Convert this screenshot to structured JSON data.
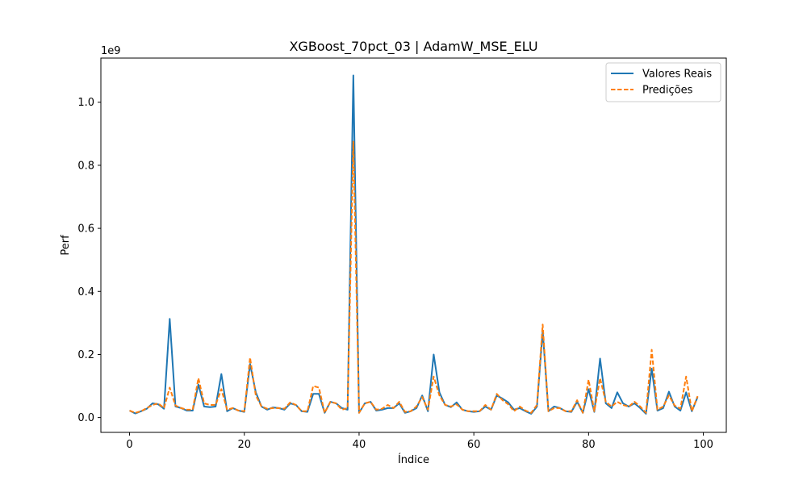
{
  "chart_data": {
    "type": "line",
    "title": "XGBoost_70pct_03 | AdamW_MSE_ELU",
    "xlabel": "Índice",
    "ylabel": "Perf",
    "y_offset_label": "1e9",
    "xlim": [
      -5,
      104
    ],
    "ylim": [
      -0.047,
      1.14
    ],
    "x_ticks": [
      0,
      20,
      40,
      60,
      80,
      100
    ],
    "y_ticks": [
      0.0,
      0.2,
      0.4,
      0.6,
      0.8,
      1.0
    ],
    "x_tick_labels": [
      "0",
      "20",
      "40",
      "60",
      "80",
      "100"
    ],
    "y_tick_labels": [
      "0.0",
      "0.2",
      "0.4",
      "0.6",
      "0.8",
      "1.0"
    ],
    "grid": false,
    "legend_position": "upper right",
    "legend": [
      "Valores Reais",
      "Predições"
    ],
    "x": [
      0,
      1,
      2,
      3,
      4,
      5,
      6,
      7,
      8,
      9,
      10,
      11,
      12,
      13,
      14,
      15,
      16,
      17,
      18,
      19,
      20,
      21,
      22,
      23,
      24,
      25,
      26,
      27,
      28,
      29,
      30,
      31,
      32,
      33,
      34,
      35,
      36,
      37,
      38,
      39,
      40,
      41,
      42,
      43,
      44,
      45,
      46,
      47,
      48,
      49,
      50,
      51,
      52,
      53,
      54,
      55,
      56,
      57,
      58,
      59,
      60,
      61,
      62,
      63,
      64,
      65,
      66,
      67,
      68,
      69,
      70,
      71,
      72,
      73,
      74,
      75,
      76,
      77,
      78,
      79,
      80,
      81,
      82,
      83,
      84,
      85,
      86,
      87,
      88,
      89,
      90,
      91,
      92,
      93,
      94,
      95,
      96,
      97,
      98,
      99
    ],
    "series": [
      {
        "name": "Valores Reais",
        "color": "#1f77b4",
        "style": "solid",
        "values": [
          0.022,
          0.013,
          0.02,
          0.028,
          0.045,
          0.042,
          0.028,
          0.313,
          0.035,
          0.03,
          0.022,
          0.022,
          0.105,
          0.035,
          0.033,
          0.035,
          0.138,
          0.02,
          0.03,
          0.022,
          0.018,
          0.17,
          0.08,
          0.035,
          0.025,
          0.032,
          0.03,
          0.025,
          0.045,
          0.04,
          0.02,
          0.018,
          0.075,
          0.075,
          0.015,
          0.05,
          0.045,
          0.03,
          0.025,
          1.085,
          0.015,
          0.045,
          0.05,
          0.022,
          0.025,
          0.03,
          0.03,
          0.045,
          0.015,
          0.02,
          0.03,
          0.07,
          0.02,
          0.2,
          0.08,
          0.04,
          0.033,
          0.048,
          0.025,
          0.02,
          0.018,
          0.02,
          0.035,
          0.025,
          0.07,
          0.06,
          0.048,
          0.025,
          0.03,
          0.02,
          0.012,
          0.035,
          0.275,
          0.02,
          0.035,
          0.03,
          0.02,
          0.018,
          0.05,
          0.015,
          0.09,
          0.018,
          0.187,
          0.045,
          0.03,
          0.08,
          0.045,
          0.035,
          0.045,
          0.03,
          0.012,
          0.155,
          0.022,
          0.03,
          0.082,
          0.035,
          0.022,
          0.08,
          0.02,
          0.065
        ]
      },
      {
        "name": "Predições",
        "color": "#ff7f0e",
        "style": "dashed",
        "values": [
          0.022,
          0.015,
          0.02,
          0.03,
          0.04,
          0.045,
          0.03,
          0.095,
          0.038,
          0.03,
          0.025,
          0.025,
          0.125,
          0.045,
          0.04,
          0.04,
          0.09,
          0.025,
          0.03,
          0.022,
          0.02,
          0.19,
          0.07,
          0.035,
          0.028,
          0.03,
          0.03,
          0.028,
          0.048,
          0.04,
          0.02,
          0.02,
          0.1,
          0.095,
          0.015,
          0.05,
          0.045,
          0.025,
          0.03,
          0.875,
          0.015,
          0.045,
          0.05,
          0.025,
          0.028,
          0.04,
          0.03,
          0.05,
          0.018,
          0.02,
          0.035,
          0.065,
          0.025,
          0.13,
          0.07,
          0.04,
          0.035,
          0.042,
          0.025,
          0.02,
          0.02,
          0.02,
          0.04,
          0.025,
          0.075,
          0.055,
          0.042,
          0.02,
          0.035,
          0.022,
          0.015,
          0.04,
          0.295,
          0.02,
          0.03,
          0.03,
          0.02,
          0.02,
          0.055,
          0.015,
          0.12,
          0.02,
          0.125,
          0.05,
          0.035,
          0.05,
          0.04,
          0.035,
          0.05,
          0.035,
          0.015,
          0.215,
          0.025,
          0.035,
          0.07,
          0.038,
          0.028,
          0.13,
          0.02,
          0.068
        ]
      }
    ]
  }
}
